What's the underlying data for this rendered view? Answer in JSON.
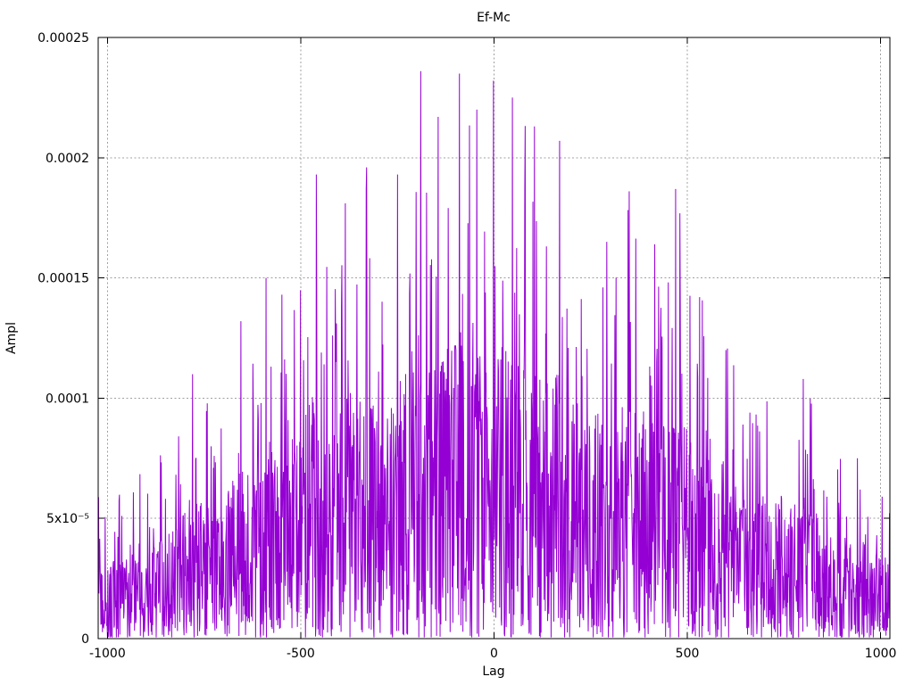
{
  "window": {
    "background": "#ffffff"
  },
  "chart_data": {
    "type": "line",
    "title": "Ef-Mc",
    "xlabel": "Lag",
    "ylabel": "Ampl",
    "legend": "none",
    "grid": "dashed",
    "line_color": "#9400d3",
    "grid_color": "#a0a0a0",
    "border_color": "#000000",
    "text_color": "#000000",
    "xlim": [
      -1024,
      1024
    ],
    "ylim": [
      0,
      0.00025
    ],
    "xticks": [
      {
        "v": -1000,
        "label": "-1000"
      },
      {
        "v": -500,
        "label": "-500"
      },
      {
        "v": 0,
        "label": "0"
      },
      {
        "v": 500,
        "label": "500"
      },
      {
        "v": 1000,
        "label": "1000"
      }
    ],
    "yticks": [
      {
        "v": 0,
        "label": "0"
      },
      {
        "v": 5e-05,
        "label": "5x10⁻⁵"
      },
      {
        "v": 0.0001,
        "label": "0.0001"
      },
      {
        "v": 0.00015,
        "label": "0.00015"
      },
      {
        "v": 0.0002,
        "label": "0.0002"
      },
      {
        "v": 0.00025,
        "label": "0.00025"
      }
    ],
    "n_points": 2048,
    "seed": 97531,
    "noise": {
      "p_spike": 0.15,
      "spike_min": 0.45,
      "spike_pow": 2,
      "base_max": 0.55,
      "base_pow": 1.3,
      "min_frac": 0.002
    },
    "envelope": [
      [
        -1024,
        6.5e-05
      ],
      [
        -960,
        6e-05
      ],
      [
        -900,
        7.5e-05
      ],
      [
        -845,
        8e-05
      ],
      [
        -780,
        0.00011
      ],
      [
        -720,
        9.5e-05
      ],
      [
        -655,
        0.000132
      ],
      [
        -590,
        0.00015
      ],
      [
        -520,
        0.000152
      ],
      [
        -460,
        0.000193
      ],
      [
        -425,
        0.000158
      ],
      [
        -385,
        0.000182
      ],
      [
        -330,
        0.000196
      ],
      [
        -288,
        0.000158
      ],
      [
        -250,
        0.000193
      ],
      [
        -190,
        0.000236
      ],
      [
        -145,
        0.000208
      ],
      [
        -90,
        0.000236
      ],
      [
        -45,
        0.000221
      ],
      [
        0,
        0.000232
      ],
      [
        50,
        0.000225
      ],
      [
        105,
        0.000213
      ],
      [
        170,
        0.000207
      ],
      [
        235,
        0.000168
      ],
      [
        290,
        0.000162
      ],
      [
        350,
        0.000186
      ],
      [
        415,
        0.000166
      ],
      [
        470,
        0.000187
      ],
      [
        530,
        0.000145
      ],
      [
        595,
        0.000125
      ],
      [
        655,
        0.000105
      ],
      [
        705,
        0.00011
      ],
      [
        755,
        0.0001
      ],
      [
        800,
        0.000108
      ],
      [
        860,
        8.5e-05
      ],
      [
        920,
        7e-05
      ],
      [
        975,
        6e-05
      ],
      [
        1005,
        7.5e-05
      ],
      [
        1024,
        7e-05
      ]
    ],
    "key_spikes": [
      [
        -780,
        0.00011
      ],
      [
        -655,
        0.000132
      ],
      [
        -590,
        0.00015
      ],
      [
        -460,
        0.000193
      ],
      [
        -385,
        0.000181
      ],
      [
        -330,
        0.000196
      ],
      [
        -250,
        0.000193
      ],
      [
        -190,
        0.000236
      ],
      [
        -145,
        0.000217
      ],
      [
        -90,
        0.000235
      ],
      [
        -45,
        0.00022
      ],
      [
        -2,
        0.000232
      ],
      [
        48,
        0.000225
      ],
      [
        105,
        0.000213
      ],
      [
        170,
        0.000207
      ],
      [
        292,
        0.000165
      ],
      [
        350,
        0.000186
      ],
      [
        470,
        0.000187
      ],
      [
        532,
        0.000142
      ],
      [
        600,
        0.00012
      ],
      [
        800,
        0.000108
      ],
      [
        940,
        7.5e-05
      ]
    ]
  }
}
